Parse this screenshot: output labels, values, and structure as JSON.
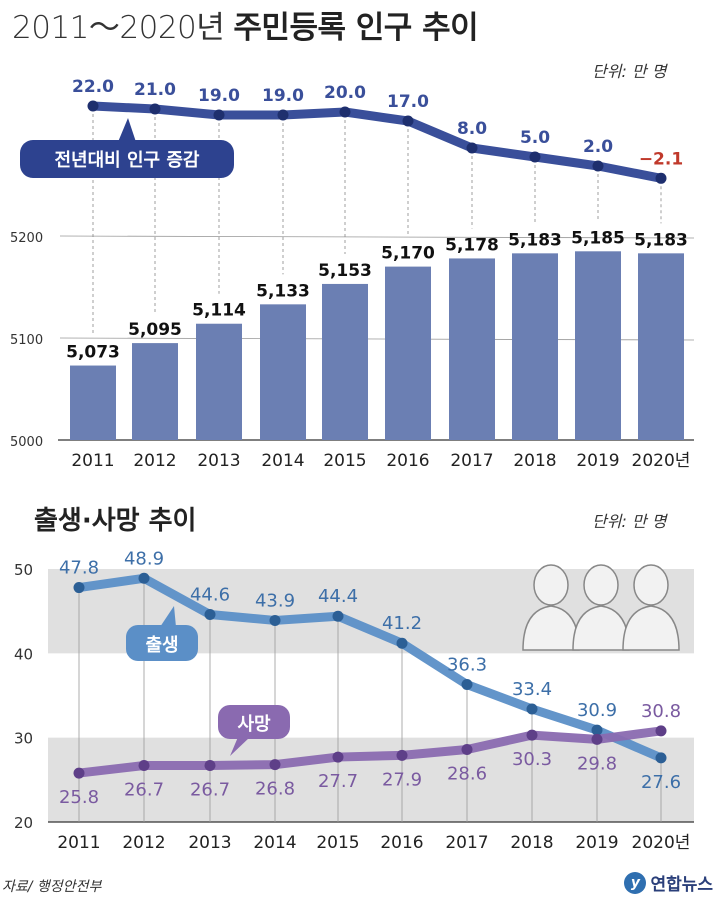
{
  "header": {
    "title_years": "2011～2020년",
    "title_main": "주민등록 인구 추이",
    "unit": "단위: 만 명"
  },
  "births_deaths_header": {
    "title": "출생·사망 추이",
    "unit": "단위: 만 명"
  },
  "source": "자료/ 행정안전부",
  "logo": {
    "mark": "y",
    "text": "연합뉴스"
  },
  "colors": {
    "bar": "#6b7fb3",
    "yoy_line": "#3a4f9a",
    "negative": "#c0392b",
    "birth": "#5b8fc7",
    "birth_label": "#3d6fa8",
    "death": "#8a6ab0",
    "death_label": "#7a5aa0",
    "band": "#e0e0e0"
  },
  "chart_data": [
    {
      "type": "line",
      "title": "전년대비 인구 증감",
      "x": [
        "2011",
        "2012",
        "2013",
        "2014",
        "2015",
        "2016",
        "2017",
        "2018",
        "2019",
        "2020"
      ],
      "values": [
        22.0,
        21.0,
        19.0,
        19.0,
        20.0,
        17.0,
        8.0,
        5.0,
        2.0,
        -2.1
      ],
      "value_labels": [
        "22.0",
        "21.0",
        "19.0",
        "19.0",
        "20.0",
        "17.0",
        "8.0",
        "5.0",
        "2.0",
        "−2.1"
      ]
    },
    {
      "type": "bar",
      "title": "주민등록 인구",
      "categories": [
        "2011",
        "2012",
        "2013",
        "2014",
        "2015",
        "2016",
        "2017",
        "2018",
        "2019",
        "2020년"
      ],
      "values": [
        5073,
        5095,
        5114,
        5133,
        5153,
        5170,
        5178,
        5183,
        5185,
        5183
      ],
      "value_labels": [
        "5,073",
        "5,095",
        "5,114",
        "5,133",
        "5,153",
        "5,170",
        "5,178",
        "5,183",
        "5,185",
        "5,183"
      ],
      "ylim": [
        5000,
        5200
      ],
      "yticks": [
        5000,
        5100,
        5200
      ],
      "ytick_labels": [
        "5000",
        "5100",
        "5200"
      ]
    },
    {
      "type": "line",
      "title": "출생·사망 추이",
      "categories": [
        "2011",
        "2012",
        "2013",
        "2014",
        "2015",
        "2016",
        "2017",
        "2018",
        "2019",
        "2020년"
      ],
      "ylim": [
        20,
        50
      ],
      "yticks": [
        20,
        30,
        40,
        50
      ],
      "ytick_labels": [
        "20",
        "30",
        "40",
        "50"
      ],
      "series": [
        {
          "name": "출생",
          "values": [
            47.8,
            48.9,
            44.6,
            43.9,
            44.4,
            41.2,
            36.3,
            33.4,
            30.9,
            27.6
          ],
          "value_labels": [
            "47.8",
            "48.9",
            "44.6",
            "43.9",
            "44.4",
            "41.2",
            "36.3",
            "33.4",
            "30.9",
            "27.6"
          ]
        },
        {
          "name": "사망",
          "values": [
            25.8,
            26.7,
            26.7,
            26.8,
            27.7,
            27.9,
            28.6,
            30.3,
            29.8,
            30.8
          ],
          "value_labels": [
            "25.8",
            "26.7",
            "26.7",
            "26.8",
            "27.7",
            "27.9",
            "28.6",
            "30.3",
            "29.8",
            "30.8"
          ]
        }
      ]
    }
  ]
}
